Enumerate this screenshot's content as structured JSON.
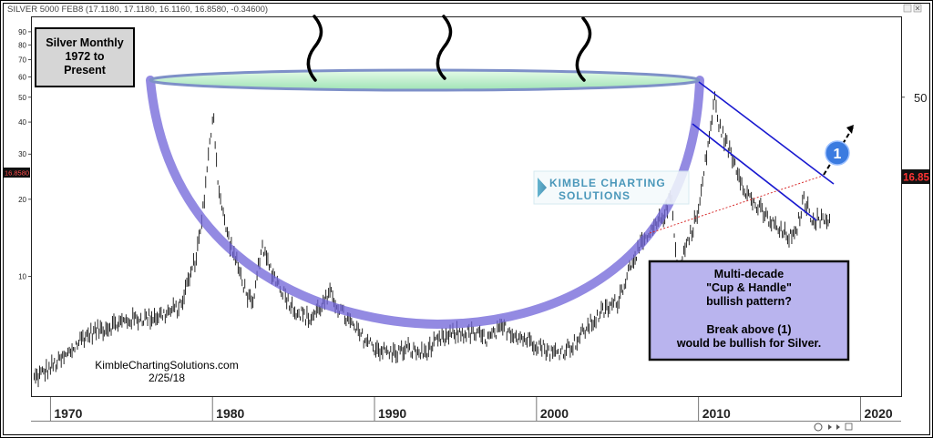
{
  "header": {
    "symbol_line": "SILVER 5000 FEB8 (17.1180, 17.1180, 16.1160, 16.8580, -0.34600)"
  },
  "price_tags": {
    "left": "16.8580",
    "right": "16.85"
  },
  "title_box": {
    "line1": "Silver Monthly",
    "line2": "1972 to",
    "line3": "Present"
  },
  "pattern_box": {
    "line1": "Multi-decade",
    "line2": "\"Cup & Handle\"",
    "line3": "bullish pattern?",
    "line4": "Break above (1)",
    "line5": "would be bullish for Silver."
  },
  "marker_label": "1",
  "logo": {
    "line1": "KIMBLE CHARTING",
    "line2": "SOLUTIONS"
  },
  "credit": {
    "site": "KimbleChartingSolutions.com",
    "date": "2/25/18"
  },
  "chart_data": {
    "type": "bar",
    "title": "Silver Monthly 1972 to Present",
    "y_scale": "log",
    "ylim": [
      3.5,
      100
    ],
    "xlim": [
      1968.8,
      2022.5
    ],
    "y_ticks_left": [
      "90",
      "80",
      "70",
      "60",
      "50",
      "40",
      "30",
      "20",
      "10"
    ],
    "y_ticks_right": [
      "50"
    ],
    "x_ticks": [
      "1970",
      "1980",
      "1990",
      "2000",
      "2010",
      "2020"
    ],
    "last_price": 16.858,
    "series": [
      {
        "x": [
          1969.0,
          1970.0,
          1971.0,
          1972.0,
          1973.0,
          1974.0,
          1975.0,
          1976.0,
          1977.0,
          1978.0,
          1979.0,
          1979.5,
          1980.05,
          1980.3,
          1980.6,
          1981.0,
          1982.0,
          1982.5,
          1983.0,
          1983.5,
          1984.0,
          1985.0,
          1986.0,
          1987.3,
          1988.0,
          1989.0,
          1990.0,
          1991.0,
          1992.0,
          1993.0,
          1994.0,
          1995.0,
          1996.0,
          1997.0,
          1998.0,
          1999.0,
          2000.0,
          2001.0,
          2001.8,
          2002.5,
          2003.0,
          2004.0,
          2005.0,
          2006.0,
          2007.0,
          2008.0,
          2008.3,
          2008.8,
          2009.0,
          2010.0,
          2010.5,
          2011.0,
          2011.3,
          2012.0,
          2013.0,
          2013.5,
          2014.0,
          2015.0,
          2015.9,
          2016.5,
          2017.0,
          2017.5,
          2018.15
        ],
        "values": [
          4.0,
          4.4,
          4.9,
          5.8,
          6.2,
          6.5,
          6.8,
          6.9,
          7.1,
          7.6,
          12.0,
          20.0,
          45.0,
          25.0,
          18.0,
          14.0,
          9.0,
          7.5,
          13.0,
          11.0,
          9.5,
          7.5,
          6.8,
          8.5,
          7.2,
          6.0,
          5.3,
          5.0,
          5.2,
          5.0,
          5.6,
          6.0,
          6.0,
          5.7,
          6.3,
          5.8,
          5.5,
          5.0,
          5.2,
          5.6,
          6.2,
          7.2,
          8.0,
          12.0,
          14.5,
          18.0,
          21.0,
          9.2,
          12.0,
          18.0,
          30.0,
          49.0,
          38.0,
          30.0,
          21.0,
          19.0,
          17.5,
          15.0,
          14.0,
          20.0,
          17.0,
          16.5,
          16.86
        ]
      }
    ]
  }
}
